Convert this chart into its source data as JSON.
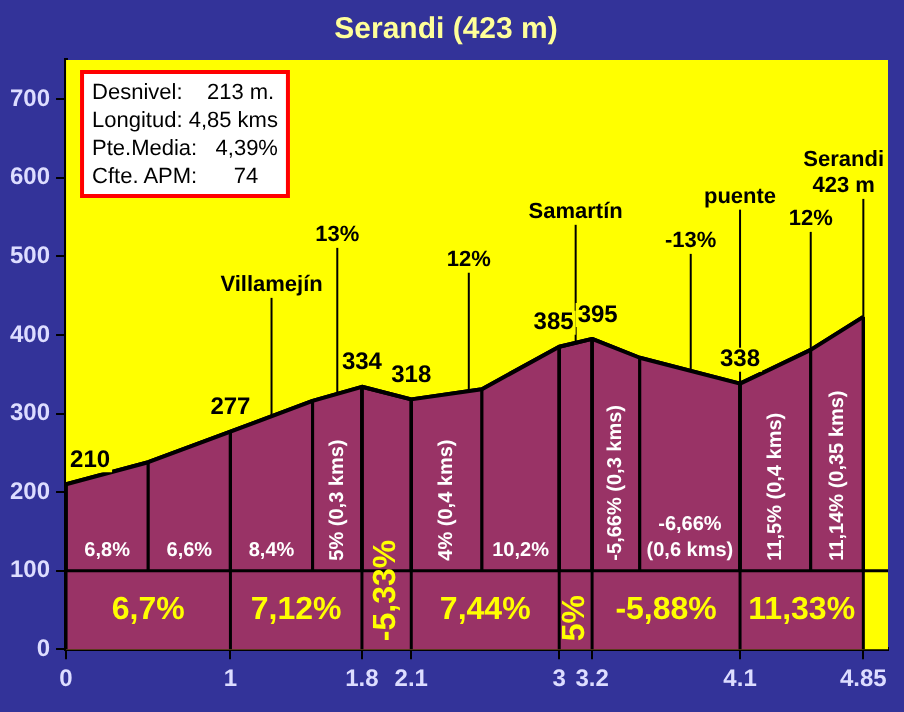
{
  "chart_data": {
    "type": "area",
    "title": "Serandi (423 m)",
    "x": [
      0,
      0.5,
      1,
      1.5,
      1.8,
      2.1,
      2.53,
      3,
      3.2,
      3.49,
      4.1,
      4.53,
      4.85
    ],
    "series": [
      {
        "color": "#993366",
        "values": [
          210,
          238,
          277,
          316,
          334,
          318,
          331,
          385,
          395,
          371,
          338,
          381,
          423
        ],
        "value_labels": [
          "210",
          null,
          "277",
          null,
          "334",
          "318",
          null,
          "385",
          "395",
          null,
          "338",
          null,
          null
        ]
      }
    ],
    "xlim": [
      0,
      5
    ],
    "xticks": [
      0,
      1,
      1.8,
      2.1,
      3,
      3.2,
      4.1,
      4.85
    ],
    "ylim": [
      0,
      750
    ],
    "yticks": [
      0,
      100,
      200,
      300,
      400,
      500,
      600,
      700
    ],
    "ref_lines": [
      {
        "axis": "y",
        "value": 100,
        "color": "#000000"
      }
    ],
    "bands": [
      {
        "axis": "x",
        "from": 0,
        "to": 0.5,
        "label": "6,8%",
        "color": "#993366"
      },
      {
        "axis": "x",
        "from": 0.5,
        "to": 1,
        "label": "6,6%",
        "color": "#993366"
      },
      {
        "axis": "x",
        "from": 1,
        "to": 1.5,
        "label": "8,4%",
        "color": "#993366"
      },
      {
        "axis": "x",
        "from": 1.5,
        "to": 1.8,
        "label": "5% (0,3 kms)",
        "color": "#993366"
      },
      {
        "axis": "x",
        "from": 2.1,
        "to": 2.53,
        "label": "4% (0,4 kms)",
        "color": "#993366"
      },
      {
        "axis": "x",
        "from": 2.53,
        "to": 3,
        "label": "10,2%",
        "color": "#993366"
      },
      {
        "axis": "x",
        "from": 3.2,
        "to": 3.49,
        "label": "-5,66% (0,3 kms)",
        "color": "#993366"
      },
      {
        "axis": "x",
        "from": 3.49,
        "to": 4.1,
        "label": "-6,66% (0,6 kms)",
        "color": "#993366"
      },
      {
        "axis": "x",
        "from": 4.1,
        "to": 4.53,
        "label": "11,5% (0,4 kms)",
        "color": "#993366"
      },
      {
        "axis": "x",
        "from": 4.53,
        "to": 4.85,
        "label": "11,14% (0,35 kms)",
        "color": "#993366"
      },
      {
        "axis": "x",
        "from": 0,
        "to": 1,
        "label": "6,7%",
        "color": "#993366"
      },
      {
        "axis": "x",
        "from": 1,
        "to": 1.8,
        "label": "7,12%",
        "color": "#993366"
      },
      {
        "axis": "x",
        "from": 1.8,
        "to": 2.1,
        "label": "-5,33%",
        "color": "#993366"
      },
      {
        "axis": "x",
        "from": 2.1,
        "to": 3,
        "label": "7,44%",
        "color": "#993366"
      },
      {
        "axis": "x",
        "from": 3,
        "to": 3.2,
        "label": "5%",
        "color": "#993366"
      },
      {
        "axis": "x",
        "from": 3.2,
        "to": 4.1,
        "label": "-5,88%",
        "color": "#993366"
      },
      {
        "axis": "x",
        "from": 4.1,
        "to": 4.85,
        "label": "11,33%",
        "color": "#993366"
      }
    ],
    "grid": "x",
    "legend": false,
    "annotations": [
      "Desnivel:    213 m.",
      "Longitud: 4,85 kms",
      "Pte.Media:   4,39%",
      "Cfte. APM:      74",
      {
        "text": "Villamejín",
        "x": 1.25,
        "y": 297
      },
      {
        "text": "13%",
        "x": 1.65,
        "y": 325
      },
      {
        "text": "12%",
        "x": 2.45,
        "y": 329
      },
      {
        "text": "Samartín",
        "x": 3.1,
        "y": 390
      },
      {
        "text": "-13%",
        "x": 3.8,
        "y": 353
      },
      {
        "text": "puente",
        "x": 4.1,
        "y": 338
      },
      {
        "text": "12%",
        "x": 4.53,
        "y": 381
      },
      {
        "text": "Serandi 423 m",
        "x": 4.85,
        "y": 423
      }
    ]
  }
}
